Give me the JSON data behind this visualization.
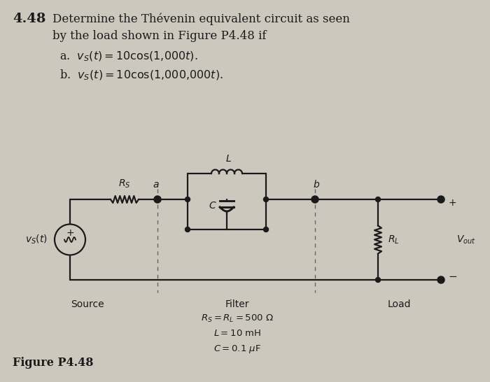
{
  "title_number": "4.48",
  "title_text": "Determine the Thévenin equivalent circuit as seen\nby the load shown in Figure P4.48 if",
  "line_a": "a.  $v_S(t) = 10\\cos(1{,}000t)$.",
  "line_b": "b.  $v_S(t) = 10\\cos(1{,}000{,}000t)$.",
  "fig_label": "Figure P4.48",
  "param_text": "$R_S = R_L = 500\\ \\Omega$\n$L = 10$ mH\n$C = 0.1\\ \\mu$F",
  "label_source": "Source",
  "label_filter": "Filter",
  "label_load": "Load",
  "bg_color": "#ccc8be",
  "line_color": "#1a1a1a"
}
